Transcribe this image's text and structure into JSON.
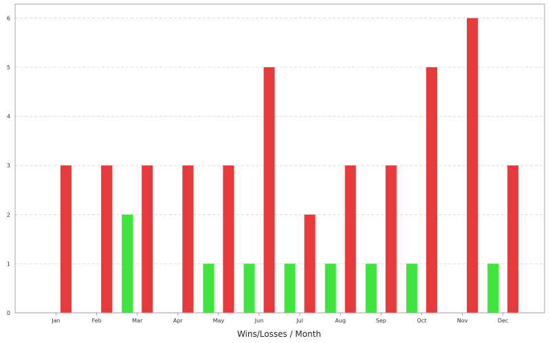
{
  "chart_data": {
    "type": "bar",
    "xlabel": "Wins/Losses / Month",
    "ylabel": "",
    "ylim": [
      0,
      6.4
    ],
    "yticks": [
      0,
      1,
      2,
      3,
      4,
      5,
      6
    ],
    "grid": true,
    "categories": [
      "Jan",
      "Feb",
      "Mar",
      "Apr",
      "May",
      "Jun",
      "Jul",
      "Aug",
      "Sep",
      "Oct",
      "Nov",
      "Dec"
    ],
    "series": [
      {
        "color": "#3de53d",
        "values": [
          0,
          0,
          2,
          0,
          1,
          1,
          1,
          1,
          1,
          1,
          0,
          1
        ]
      },
      {
        "color": "#e8393b",
        "values": [
          3,
          3,
          3,
          3,
          3,
          5,
          2,
          3,
          3,
          5,
          6,
          3
        ]
      }
    ]
  }
}
